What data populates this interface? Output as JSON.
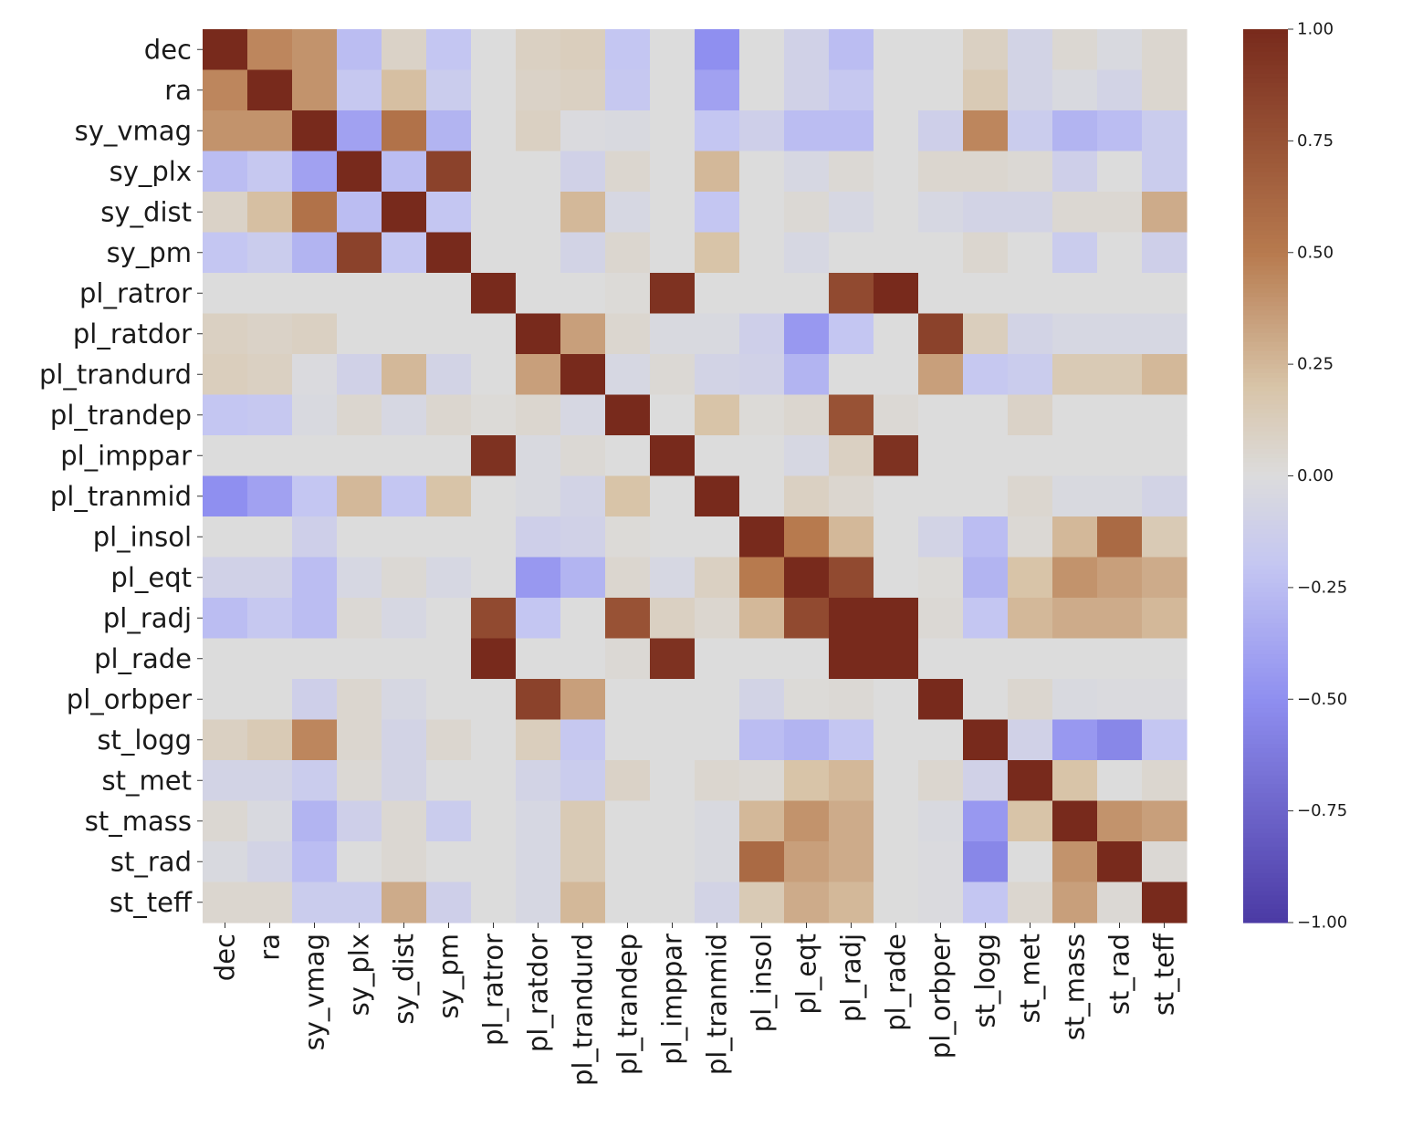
{
  "chart_data": {
    "type": "heatmap",
    "labels": [
      "dec",
      "ra",
      "sy_vmag",
      "sy_plx",
      "sy_dist",
      "sy_pm",
      "pl_ratror",
      "pl_ratdor",
      "pl_trandurd",
      "pl_trandep",
      "pl_imppar",
      "pl_tranmid",
      "pl_insol",
      "pl_eqt",
      "pl_radj",
      "pl_rade",
      "pl_orbper",
      "st_logg",
      "st_met",
      "st_mass",
      "st_rad",
      "st_teff"
    ],
    "values": [
      [
        1.0,
        0.45,
        0.4,
        -0.25,
        0.08,
        -0.2,
        0.0,
        0.1,
        0.12,
        -0.2,
        0.0,
        -0.5,
        0.0,
        -0.1,
        -0.25,
        0.0,
        0.0,
        0.1,
        -0.08,
        0.04,
        -0.03,
        0.05
      ],
      [
        0.45,
        1.0,
        0.4,
        -0.18,
        0.22,
        -0.15,
        0.0,
        0.08,
        0.1,
        -0.18,
        0.0,
        -0.4,
        0.0,
        -0.1,
        -0.18,
        0.0,
        0.0,
        0.15,
        -0.08,
        -0.03,
        -0.08,
        0.05
      ],
      [
        0.4,
        0.4,
        1.0,
        -0.4,
        0.55,
        -0.3,
        0.0,
        0.1,
        -0.02,
        -0.03,
        0.0,
        -0.2,
        -0.12,
        -0.25,
        -0.25,
        0.0,
        -0.12,
        0.45,
        -0.15,
        -0.3,
        -0.25,
        -0.15
      ],
      [
        -0.25,
        -0.18,
        -0.4,
        1.0,
        -0.25,
        0.85,
        0.0,
        0.0,
        -0.1,
        0.05,
        0.0,
        0.25,
        0.0,
        -0.05,
        0.03,
        0.0,
        0.05,
        0.05,
        0.03,
        -0.12,
        0.0,
        -0.15
      ],
      [
        0.08,
        0.22,
        0.55,
        -0.25,
        1.0,
        -0.2,
        0.0,
        0.0,
        0.25,
        -0.05,
        0.0,
        -0.2,
        0.0,
        0.03,
        -0.05,
        0.0,
        -0.05,
        -0.08,
        -0.08,
        0.04,
        0.04,
        0.3
      ],
      [
        -0.2,
        -0.15,
        -0.3,
        0.85,
        -0.2,
        1.0,
        0.0,
        0.0,
        -0.08,
        0.05,
        0.0,
        0.2,
        0.0,
        -0.05,
        0.0,
        0.0,
        0.0,
        0.05,
        0.0,
        -0.15,
        0.0,
        -0.12
      ],
      [
        0.0,
        0.0,
        0.0,
        0.0,
        0.0,
        0.0,
        1.0,
        0.0,
        0.0,
        0.02,
        0.95,
        0.0,
        0.0,
        0.0,
        0.8,
        1.0,
        0.0,
        0.0,
        0.0,
        0.0,
        0.0,
        0.0
      ],
      [
        0.1,
        0.08,
        0.1,
        0.0,
        0.0,
        0.0,
        0.0,
        1.0,
        0.35,
        0.05,
        -0.03,
        -0.03,
        -0.12,
        -0.45,
        -0.2,
        0.0,
        0.85,
        0.12,
        -0.08,
        -0.05,
        -0.05,
        -0.05
      ],
      [
        0.12,
        0.1,
        -0.02,
        -0.1,
        0.25,
        -0.08,
        0.0,
        0.35,
        1.0,
        -0.05,
        0.03,
        -0.08,
        -0.1,
        -0.3,
        0.0,
        0.0,
        0.35,
        -0.18,
        -0.15,
        0.15,
        0.15,
        0.25
      ],
      [
        -0.2,
        -0.18,
        -0.03,
        0.05,
        -0.05,
        0.05,
        0.02,
        0.05,
        -0.05,
        1.0,
        0.0,
        0.2,
        0.02,
        0.05,
        0.75,
        0.03,
        0.0,
        0.0,
        0.08,
        0.0,
        0.0,
        0.0
      ],
      [
        0.0,
        0.0,
        0.0,
        0.0,
        0.0,
        0.0,
        0.95,
        -0.03,
        0.03,
        0.0,
        1.0,
        0.0,
        0.0,
        -0.05,
        0.1,
        0.95,
        0.0,
        0.0,
        0.0,
        0.0,
        0.0,
        0.0
      ],
      [
        -0.5,
        -0.4,
        -0.2,
        0.25,
        -0.2,
        0.2,
        0.0,
        -0.03,
        -0.08,
        0.2,
        0.0,
        1.0,
        0.0,
        0.1,
        0.05,
        0.0,
        0.0,
        0.0,
        0.05,
        -0.03,
        -0.03,
        -0.08
      ],
      [
        0.0,
        0.0,
        -0.12,
        0.0,
        0.0,
        0.0,
        0.0,
        -0.12,
        -0.1,
        0.02,
        0.0,
        0.0,
        1.0,
        0.5,
        0.25,
        0.0,
        -0.08,
        -0.25,
        0.03,
        0.25,
        0.6,
        0.15
      ],
      [
        -0.1,
        -0.1,
        -0.25,
        -0.05,
        0.03,
        -0.05,
        0.0,
        -0.45,
        -0.3,
        0.05,
        -0.05,
        0.1,
        0.5,
        1.0,
        0.8,
        0.0,
        0.02,
        -0.3,
        0.2,
        0.4,
        0.35,
        0.3
      ],
      [
        -0.25,
        -0.18,
        -0.25,
        0.03,
        -0.05,
        0.0,
        0.8,
        -0.2,
        0.0,
        0.75,
        0.1,
        0.05,
        0.25,
        0.8,
        1.0,
        1.0,
        0.03,
        -0.2,
        0.25,
        0.3,
        0.3,
        0.25
      ],
      [
        0.0,
        0.0,
        0.0,
        0.0,
        0.0,
        0.0,
        1.0,
        0.0,
        0.0,
        0.03,
        0.95,
        0.0,
        0.0,
        0.0,
        1.0,
        1.0,
        0.0,
        0.0,
        0.0,
        0.0,
        0.0,
        0.0
      ],
      [
        0.0,
        0.0,
        -0.12,
        0.05,
        -0.05,
        0.0,
        0.0,
        0.85,
        0.35,
        0.0,
        0.0,
        0.0,
        -0.08,
        0.02,
        0.03,
        0.0,
        1.0,
        0.0,
        0.05,
        -0.03,
        -0.02,
        -0.02
      ],
      [
        0.1,
        0.15,
        0.45,
        0.05,
        -0.08,
        0.05,
        0.0,
        0.12,
        -0.18,
        0.0,
        0.0,
        0.0,
        -0.25,
        -0.3,
        -0.2,
        0.0,
        0.0,
        1.0,
        -0.1,
        -0.45,
        -0.55,
        -0.2
      ],
      [
        -0.08,
        -0.08,
        -0.15,
        0.03,
        -0.08,
        0.0,
        0.0,
        -0.08,
        -0.15,
        0.08,
        0.0,
        0.05,
        0.03,
        0.2,
        0.25,
        0.0,
        0.05,
        -0.1,
        1.0,
        0.2,
        0.0,
        0.05
      ],
      [
        0.04,
        -0.03,
        -0.3,
        -0.12,
        0.04,
        -0.15,
        0.0,
        -0.05,
        0.15,
        0.0,
        0.0,
        -0.03,
        0.25,
        0.4,
        0.3,
        0.0,
        -0.03,
        -0.45,
        0.2,
        1.0,
        0.4,
        0.35
      ],
      [
        -0.03,
        -0.08,
        -0.25,
        0.0,
        0.04,
        0.0,
        0.0,
        -0.05,
        0.15,
        0.0,
        0.0,
        -0.03,
        0.6,
        0.35,
        0.3,
        0.0,
        -0.02,
        -0.55,
        0.0,
        0.4,
        1.0,
        0.03
      ],
      [
        0.05,
        0.05,
        -0.15,
        -0.15,
        0.3,
        -0.12,
        0.0,
        -0.05,
        0.25,
        0.0,
        0.0,
        -0.08,
        0.15,
        0.3,
        0.25,
        0.0,
        -0.02,
        -0.2,
        0.05,
        0.35,
        0.03,
        1.0
      ]
    ],
    "vmin": -1.0,
    "vmax": 1.0,
    "colorbar_ticks": [
      "1.00",
      "0.75",
      "0.50",
      "0.25",
      "0.00",
      "−0.25",
      "−0.50",
      "−0.75",
      "−1.00"
    ],
    "colorbar_tick_values": [
      1.0,
      0.75,
      0.5,
      0.25,
      0.0,
      -0.25,
      -0.5,
      -0.75,
      -1.0
    ],
    "colormap": {
      "neg_end": "#4b3aa4",
      "neg_mid": "#8f8ff0",
      "neg_light": "#c4c6f2",
      "center": "#dcdcdc",
      "pos_light": "#d8c4a8",
      "pos_mid": "#b77a4e",
      "pos_end": "#782a1c"
    },
    "title": "",
    "xlabel": "",
    "ylabel": "",
    "colorbar_position": "right"
  }
}
